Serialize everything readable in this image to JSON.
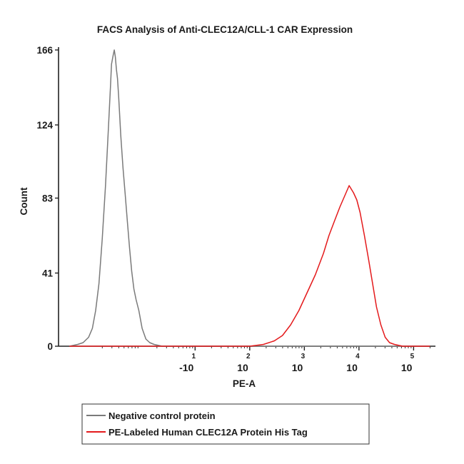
{
  "chart_data": {
    "type": "line",
    "title": "FACS Analysis of Anti-CLEC12A/CLL-1 CAR Expression",
    "xlabel": "PE-A",
    "ylabel": "Count",
    "y_ticks": [
      "0",
      "41",
      "83",
      "124",
      "166"
    ],
    "y_tick_values": [
      0,
      41,
      83,
      124,
      166
    ],
    "ylim": [
      0,
      166
    ],
    "xlim": [
      -1.5,
      5.4
    ],
    "x_ticks": [
      {
        "base": "-10",
        "exp": "1",
        "value": 1.0
      },
      {
        "base": "10",
        "exp": "2",
        "value": 2.0
      },
      {
        "base": "10",
        "exp": "3",
        "value": 3.0
      },
      {
        "base": "10",
        "exp": "4",
        "value": 4.0
      },
      {
        "base": "10",
        "exp": "5",
        "value": 5.0
      }
    ],
    "legend_placement": "bottom-left",
    "series": [
      {
        "name": "Negative control protein",
        "color": "#7a7a7a",
        "points": [
          [
            -1.3,
            0
          ],
          [
            -1.15,
            1
          ],
          [
            -1.05,
            2
          ],
          [
            -0.95,
            5
          ],
          [
            -0.88,
            10
          ],
          [
            -0.82,
            20
          ],
          [
            -0.76,
            35
          ],
          [
            -0.7,
            60
          ],
          [
            -0.64,
            90
          ],
          [
            -0.59,
            120
          ],
          [
            -0.55,
            145
          ],
          [
            -0.53,
            158
          ],
          [
            -0.5,
            163
          ],
          [
            -0.48,
            166
          ],
          [
            -0.46,
            162
          ],
          [
            -0.44,
            155
          ],
          [
            -0.42,
            150
          ],
          [
            -0.4,
            140
          ],
          [
            -0.36,
            118
          ],
          [
            -0.32,
            100
          ],
          [
            -0.28,
            85
          ],
          [
            -0.24,
            70
          ],
          [
            -0.2,
            55
          ],
          [
            -0.16,
            42
          ],
          [
            -0.12,
            32
          ],
          [
            -0.08,
            26
          ],
          [
            -0.03,
            20
          ],
          [
            0.03,
            10
          ],
          [
            0.1,
            4
          ],
          [
            0.17,
            2
          ],
          [
            0.25,
            1
          ],
          [
            0.4,
            0
          ],
          [
            5.3,
            0
          ]
        ]
      },
      {
        "name": "PE-Labeled Human CLEC12A Protein His Tag",
        "color": "#e41a1c",
        "points": [
          [
            -1.3,
            0
          ],
          [
            1.6,
            0
          ],
          [
            2.0,
            0
          ],
          [
            2.25,
            1
          ],
          [
            2.45,
            3
          ],
          [
            2.6,
            6
          ],
          [
            2.75,
            12
          ],
          [
            2.9,
            20
          ],
          [
            3.05,
            30
          ],
          [
            3.2,
            40
          ],
          [
            3.35,
            52
          ],
          [
            3.45,
            62
          ],
          [
            3.55,
            70
          ],
          [
            3.65,
            78
          ],
          [
            3.75,
            85
          ],
          [
            3.82,
            90
          ],
          [
            3.9,
            86
          ],
          [
            3.96,
            82
          ],
          [
            4.02,
            75
          ],
          [
            4.1,
            62
          ],
          [
            4.18,
            48
          ],
          [
            4.25,
            35
          ],
          [
            4.32,
            22
          ],
          [
            4.4,
            12
          ],
          [
            4.48,
            5
          ],
          [
            4.56,
            2
          ],
          [
            4.65,
            1
          ],
          [
            4.8,
            0
          ],
          [
            5.3,
            0
          ]
        ]
      }
    ]
  },
  "legend": {
    "items": [
      {
        "label": "Negative control protein",
        "color": "#7a7a7a"
      },
      {
        "label": "PE-Labeled Human CLEC12A Protein His Tag",
        "color": "#e41a1c"
      }
    ]
  }
}
